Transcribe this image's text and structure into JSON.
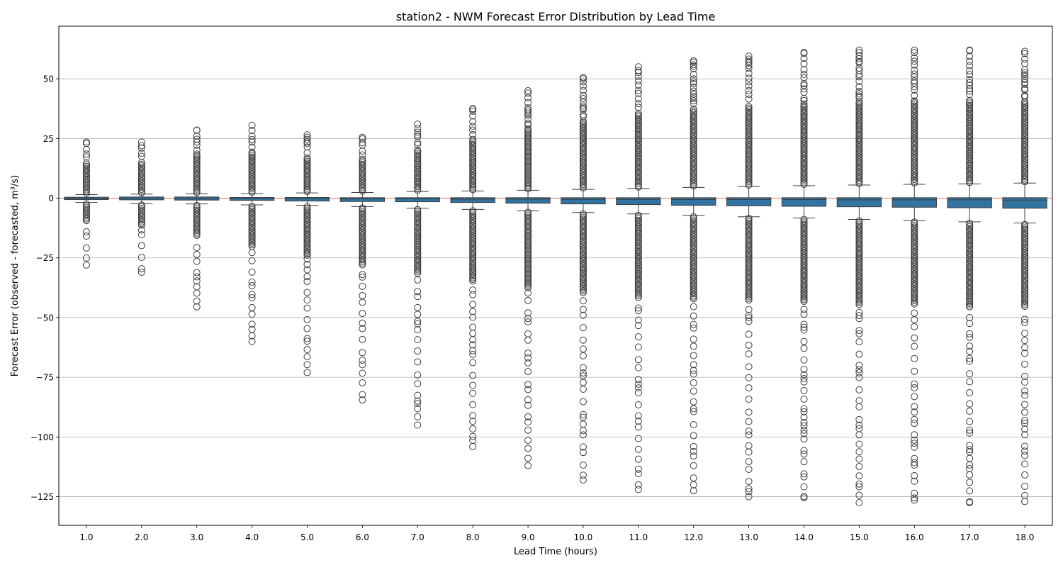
{
  "chart_data": {
    "type": "box",
    "title": "station2 - NWM Forecast Error Distribution by Lead Time",
    "xlabel": "Lead Time (hours)",
    "ylabel": "Forecast Error (observed - forecasted, m³/s)",
    "categories": [
      "1.0",
      "2.0",
      "3.0",
      "4.0",
      "5.0",
      "6.0",
      "7.0",
      "8.0",
      "9.0",
      "10.0",
      "11.0",
      "12.0",
      "13.0",
      "14.0",
      "15.0",
      "16.0",
      "17.0",
      "18.0"
    ],
    "ylim": [
      -137,
      72
    ],
    "yticks": [
      50,
      25,
      0,
      -25,
      -50,
      -75,
      -100,
      -125
    ],
    "ytick_labels": [
      "50",
      "25",
      "0",
      "−25",
      "−50",
      "−75",
      "−100",
      "−125"
    ],
    "grid": "horizontal",
    "reference_line": {
      "y": 0,
      "color": "#e8705a"
    },
    "box_color": "#3274a1",
    "edge_color": "#3d3d3d",
    "boxes": [
      {
        "q1": -0.6,
        "median": -0.1,
        "q3": 0.4,
        "whisker_low": -1.8,
        "whisker_high": 1.5,
        "outlier_high_max": 23.5,
        "outlier_low_min": -28
      },
      {
        "q1": -0.7,
        "median": -0.1,
        "q3": 0.5,
        "whisker_low": -2.3,
        "whisker_high": 1.7,
        "outlier_high_max": 23.5,
        "outlier_low_min": -31
      },
      {
        "q1": -0.8,
        "median": -0.2,
        "q3": 0.5,
        "whisker_low": -2.4,
        "whisker_high": 1.8,
        "outlier_high_max": 28.5,
        "outlier_low_min": -45.5
      },
      {
        "q1": -0.9,
        "median": -0.2,
        "q3": 0.3,
        "whisker_low": -2.8,
        "whisker_high": 1.9,
        "outlier_high_max": 30.5,
        "outlier_low_min": -60
      },
      {
        "q1": -1.2,
        "median": -0.3,
        "q3": 0.3,
        "whisker_low": -3.0,
        "whisker_high": 2.2,
        "outlier_high_max": 26.5,
        "outlier_low_min": -73
      },
      {
        "q1": -1.4,
        "median": -0.3,
        "q3": 0.2,
        "whisker_low": -3.5,
        "whisker_high": 2.4,
        "outlier_high_max": 25.5,
        "outlier_low_min": -84.5
      },
      {
        "q1": -1.5,
        "median": -0.3,
        "q3": 0.2,
        "whisker_low": -4.2,
        "whisker_high": 2.8,
        "outlier_high_max": 31,
        "outlier_low_min": -95
      },
      {
        "q1": -1.8,
        "median": -0.4,
        "q3": 0.2,
        "whisker_low": -4.7,
        "whisker_high": 3.0,
        "outlier_high_max": 37.5,
        "outlier_low_min": -104
      },
      {
        "q1": -2.1,
        "median": -0.4,
        "q3": 0.2,
        "whisker_low": -5.3,
        "whisker_high": 3.3,
        "outlier_high_max": 45,
        "outlier_low_min": -112
      },
      {
        "q1": -2.4,
        "median": -0.5,
        "q3": 0.2,
        "whisker_low": -6.0,
        "whisker_high": 3.7,
        "outlier_high_max": 50.5,
        "outlier_low_min": -118
      },
      {
        "q1": -2.7,
        "median": -0.5,
        "q3": 0.2,
        "whisker_low": -6.6,
        "whisker_high": 4.1,
        "outlier_high_max": 55,
        "outlier_low_min": -122
      },
      {
        "q1": -3.0,
        "median": -0.6,
        "q3": 0.2,
        "whisker_low": -7.2,
        "whisker_high": 4.5,
        "outlier_high_max": 57.5,
        "outlier_low_min": -122.5
      },
      {
        "q1": -3.2,
        "median": -0.6,
        "q3": 0.2,
        "whisker_low": -7.8,
        "whisker_high": 4.9,
        "outlier_high_max": 59.5,
        "outlier_low_min": -125
      },
      {
        "q1": -3.4,
        "median": -0.6,
        "q3": 0.2,
        "whisker_low": -8.3,
        "whisker_high": 5.2,
        "outlier_high_max": 61,
        "outlier_low_min": -125.5
      },
      {
        "q1": -3.6,
        "median": -0.7,
        "q3": 0.2,
        "whisker_low": -8.9,
        "whisker_high": 5.5,
        "outlier_high_max": 62,
        "outlier_low_min": -127.5
      },
      {
        "q1": -3.8,
        "median": -0.7,
        "q3": 0.2,
        "whisker_low": -9.4,
        "whisker_high": 5.8,
        "outlier_high_max": 62,
        "outlier_low_min": -126.5
      },
      {
        "q1": -4.0,
        "median": -0.7,
        "q3": 0.2,
        "whisker_low": -9.9,
        "whisker_high": 6.0,
        "outlier_high_max": 62,
        "outlier_low_min": -127.5
      },
      {
        "q1": -4.2,
        "median": -0.8,
        "q3": 0.2,
        "whisker_low": -10.4,
        "whisker_high": 6.3,
        "outlier_high_max": 61.5,
        "outlier_low_min": -127
      }
    ]
  }
}
